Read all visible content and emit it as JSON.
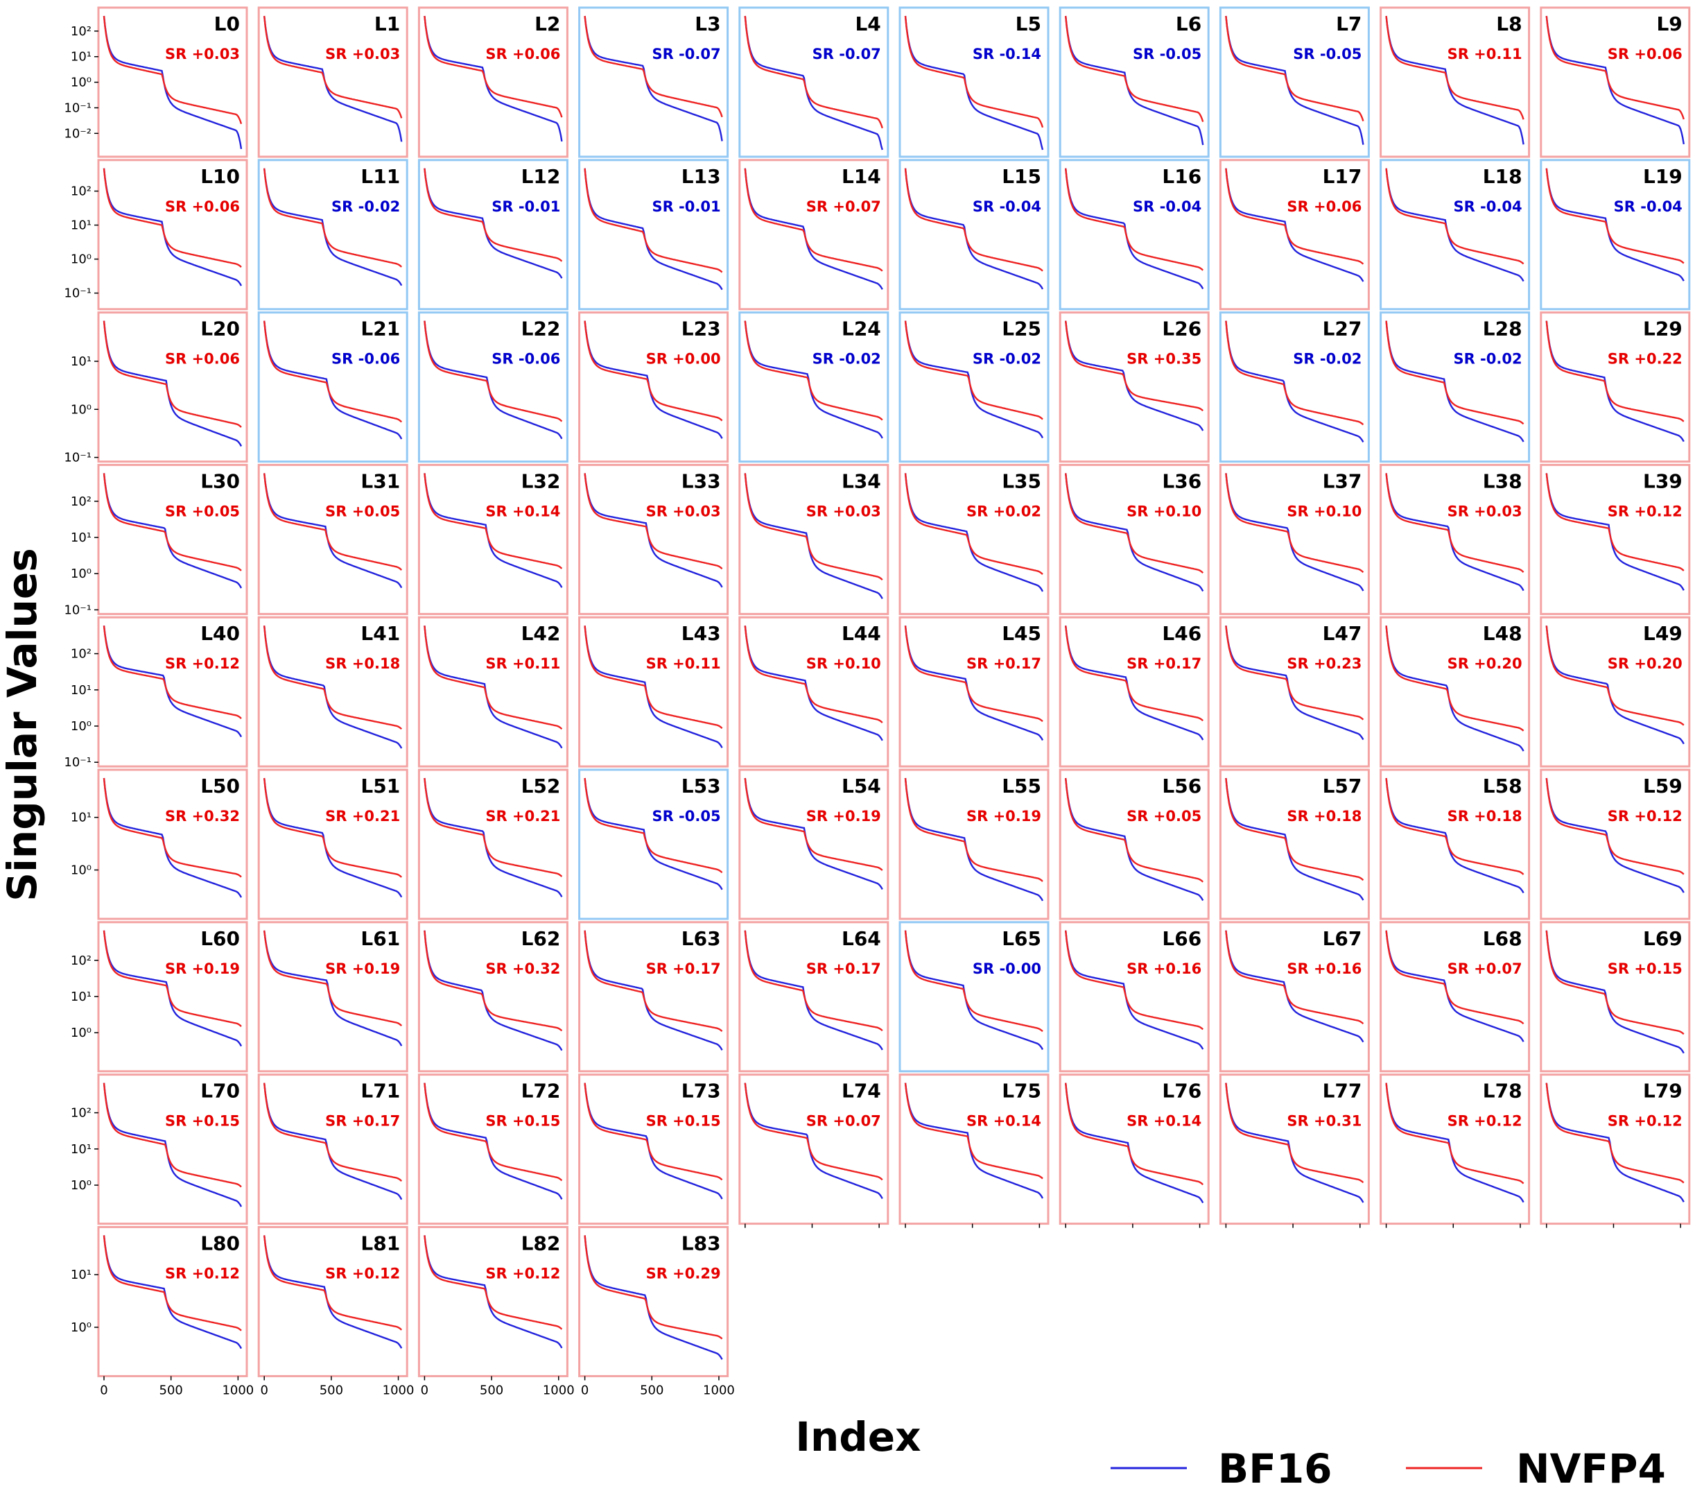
{
  "chart_data": {
    "type": "line",
    "ylabel": "Singular Values",
    "xlabel": "Index",
    "yscale": "log",
    "xlim": [
      0,
      1024
    ],
    "x_ticks": [
      "0",
      "500",
      "1000"
    ],
    "legend": {
      "placement": "bottom-right",
      "entries": [
        {
          "label": "BF16",
          "color": "#2222dd"
        },
        {
          "label": "NVFP4",
          "color": "#ee2222"
        }
      ]
    },
    "colors": {
      "bf16": "#2222dd",
      "nvfp4": "#ee2222",
      "frame_positive": "#f4a3a3",
      "frame_negative": "#93c9f4",
      "sr_positive": "#e60000",
      "sr_negative": "#0000cc"
    },
    "row_y_axes": [
      {
        "ticks": [
          {
            "exp": 2,
            "label": "10²"
          },
          {
            "exp": 1,
            "label": "10¹"
          },
          {
            "exp": 0,
            "label": "10⁰"
          },
          {
            "exp": -1,
            "label": "10⁻¹"
          },
          {
            "exp": -2,
            "label": "10⁻²"
          }
        ],
        "ylim_exp": [
          -2.75,
          2.7
        ]
      },
      {
        "ticks": [
          {
            "exp": 2,
            "label": "10²"
          },
          {
            "exp": 1,
            "label": "10¹"
          },
          {
            "exp": 0,
            "label": "10⁰"
          },
          {
            "exp": -1,
            "label": "10⁻¹"
          }
        ],
        "ylim_exp": [
          -1.35,
          2.75
        ]
      },
      {
        "ticks": [
          {
            "exp": 1,
            "label": "10¹"
          },
          {
            "exp": 0,
            "label": "10⁰"
          },
          {
            "exp": -1,
            "label": "10⁻¹"
          }
        ],
        "ylim_exp": [
          -1.0,
          1.9
        ]
      },
      {
        "ticks": [
          {
            "exp": 2,
            "label": "10²"
          },
          {
            "exp": 1,
            "label": "10¹"
          },
          {
            "exp": 0,
            "label": "10⁰"
          },
          {
            "exp": -1,
            "label": "10⁻¹"
          }
        ],
        "ylim_exp": [
          -1.0,
          2.85
        ]
      },
      {
        "ticks": [
          {
            "exp": 2,
            "label": "10²"
          },
          {
            "exp": 1,
            "label": "10¹"
          },
          {
            "exp": 0,
            "label": "10⁰"
          },
          {
            "exp": -1,
            "label": "10⁻¹"
          }
        ],
        "ylim_exp": [
          -1.0,
          2.85
        ]
      },
      {
        "ticks": [
          {
            "exp": 1,
            "label": "10¹"
          },
          {
            "exp": 0,
            "label": "10⁰"
          }
        ],
        "ylim_exp": [
          -0.85,
          1.8
        ]
      },
      {
        "ticks": [
          {
            "exp": 2,
            "label": "10²"
          },
          {
            "exp": 1,
            "label": "10¹"
          },
          {
            "exp": 0,
            "label": "10⁰"
          }
        ],
        "ylim_exp": [
          -0.95,
          2.9
        ]
      },
      {
        "ticks": [
          {
            "exp": 2,
            "label": "10²"
          },
          {
            "exp": 1,
            "label": "10¹"
          },
          {
            "exp": 0,
            "label": "10⁰"
          }
        ],
        "ylim_exp": [
          -0.95,
          2.9
        ]
      },
      {
        "ticks": [
          {
            "exp": 1,
            "label": "10¹"
          },
          {
            "exp": 0,
            "label": "10⁰"
          }
        ],
        "ylim_exp": [
          -0.85,
          1.8
        ]
      }
    ],
    "panels": [
      {
        "label": "L0",
        "sr": "SR +0.03"
      },
      {
        "label": "L1",
        "sr": "SR +0.03"
      },
      {
        "label": "L2",
        "sr": "SR +0.06"
      },
      {
        "label": "L3",
        "sr": "SR -0.07"
      },
      {
        "label": "L4",
        "sr": "SR -0.07"
      },
      {
        "label": "L5",
        "sr": "SR -0.14"
      },
      {
        "label": "L6",
        "sr": "SR -0.05"
      },
      {
        "label": "L7",
        "sr": "SR -0.05"
      },
      {
        "label": "L8",
        "sr": "SR +0.11"
      },
      {
        "label": "L9",
        "sr": "SR +0.06"
      },
      {
        "label": "L10",
        "sr": "SR +0.06"
      },
      {
        "label": "L11",
        "sr": "SR -0.02"
      },
      {
        "label": "L12",
        "sr": "SR -0.01"
      },
      {
        "label": "L13",
        "sr": "SR -0.01"
      },
      {
        "label": "L14",
        "sr": "SR +0.07"
      },
      {
        "label": "L15",
        "sr": "SR -0.04"
      },
      {
        "label": "L16",
        "sr": "SR -0.04"
      },
      {
        "label": "L17",
        "sr": "SR +0.06"
      },
      {
        "label": "L18",
        "sr": "SR -0.04"
      },
      {
        "label": "L19",
        "sr": "SR -0.04"
      },
      {
        "label": "L20",
        "sr": "SR +0.06"
      },
      {
        "label": "L21",
        "sr": "SR -0.06"
      },
      {
        "label": "L22",
        "sr": "SR -0.06"
      },
      {
        "label": "L23",
        "sr": "SR +0.00"
      },
      {
        "label": "L24",
        "sr": "SR -0.02"
      },
      {
        "label": "L25",
        "sr": "SR -0.02"
      },
      {
        "label": "L26",
        "sr": "SR +0.35"
      },
      {
        "label": "L27",
        "sr": "SR -0.02"
      },
      {
        "label": "L28",
        "sr": "SR -0.02"
      },
      {
        "label": "L29",
        "sr": "SR +0.22"
      },
      {
        "label": "L30",
        "sr": "SR +0.05"
      },
      {
        "label": "L31",
        "sr": "SR +0.05"
      },
      {
        "label": "L32",
        "sr": "SR +0.14"
      },
      {
        "label": "L33",
        "sr": "SR +0.03"
      },
      {
        "label": "L34",
        "sr": "SR +0.03"
      },
      {
        "label": "L35",
        "sr": "SR +0.02"
      },
      {
        "label": "L36",
        "sr": "SR +0.10"
      },
      {
        "label": "L37",
        "sr": "SR +0.10"
      },
      {
        "label": "L38",
        "sr": "SR +0.03"
      },
      {
        "label": "L39",
        "sr": "SR +0.12"
      },
      {
        "label": "L40",
        "sr": "SR +0.12"
      },
      {
        "label": "L41",
        "sr": "SR +0.18"
      },
      {
        "label": "L42",
        "sr": "SR +0.11"
      },
      {
        "label": "L43",
        "sr": "SR +0.11"
      },
      {
        "label": "L44",
        "sr": "SR +0.10"
      },
      {
        "label": "L45",
        "sr": "SR +0.17"
      },
      {
        "label": "L46",
        "sr": "SR +0.17"
      },
      {
        "label": "L47",
        "sr": "SR +0.23"
      },
      {
        "label": "L48",
        "sr": "SR +0.20"
      },
      {
        "label": "L49",
        "sr": "SR +0.20"
      },
      {
        "label": "L50",
        "sr": "SR +0.32"
      },
      {
        "label": "L51",
        "sr": "SR +0.21"
      },
      {
        "label": "L52",
        "sr": "SR +0.21"
      },
      {
        "label": "L53",
        "sr": "SR -0.05"
      },
      {
        "label": "L54",
        "sr": "SR +0.19"
      },
      {
        "label": "L55",
        "sr": "SR +0.19"
      },
      {
        "label": "L56",
        "sr": "SR +0.05"
      },
      {
        "label": "L57",
        "sr": "SR +0.18"
      },
      {
        "label": "L58",
        "sr": "SR +0.18"
      },
      {
        "label": "L59",
        "sr": "SR +0.12"
      },
      {
        "label": "L60",
        "sr": "SR +0.19"
      },
      {
        "label": "L61",
        "sr": "SR +0.19"
      },
      {
        "label": "L62",
        "sr": "SR +0.32"
      },
      {
        "label": "L63",
        "sr": "SR +0.17"
      },
      {
        "label": "L64",
        "sr": "SR +0.17"
      },
      {
        "label": "L65",
        "sr": "SR -0.00"
      },
      {
        "label": "L66",
        "sr": "SR +0.16"
      },
      {
        "label": "L67",
        "sr": "SR +0.16"
      },
      {
        "label": "L68",
        "sr": "SR +0.07"
      },
      {
        "label": "L69",
        "sr": "SR +0.15"
      },
      {
        "label": "L70",
        "sr": "SR +0.15"
      },
      {
        "label": "L71",
        "sr": "SR +0.17"
      },
      {
        "label": "L72",
        "sr": "SR +0.15"
      },
      {
        "label": "L73",
        "sr": "SR +0.15"
      },
      {
        "label": "L74",
        "sr": "SR +0.07"
      },
      {
        "label": "L75",
        "sr": "SR +0.14"
      },
      {
        "label": "L76",
        "sr": "SR +0.14"
      },
      {
        "label": "L77",
        "sr": "SR +0.31"
      },
      {
        "label": "L78",
        "sr": "SR +0.12"
      },
      {
        "label": "L79",
        "sr": "SR +0.12"
      },
      {
        "label": "L80",
        "sr": "SR +0.12"
      },
      {
        "label": "L81",
        "sr": "SR +0.12"
      },
      {
        "label": "L82",
        "sr": "SR +0.12"
      },
      {
        "label": "L83",
        "sr": "SR +0.29"
      }
    ]
  }
}
